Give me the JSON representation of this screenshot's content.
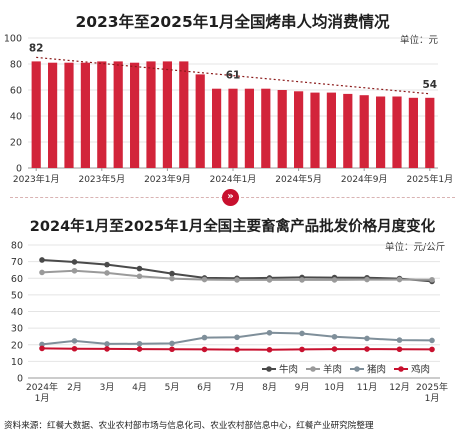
{
  "chart_data": [
    {
      "type": "bar",
      "title": "2023年至2025年1月全国烤串人均消费情况",
      "unit": "单位：元",
      "categories": [
        "2023-01",
        "2023-02",
        "2023-03",
        "2023-04",
        "2023-05",
        "2023-06",
        "2023-07",
        "2023-08",
        "2023-09",
        "2023-10",
        "2023-11",
        "2023-12",
        "2024-01",
        "2024-02",
        "2024-03",
        "2024-04",
        "2024-05",
        "2024-06",
        "2024-07",
        "2024-08",
        "2024-09",
        "2024-10",
        "2024-11",
        "2024-12",
        "2025-01"
      ],
      "tick_labels": [
        "2023年1月",
        "2023年5月",
        "2023年9月",
        "2024年1月",
        "2024年5月",
        "2024年9月",
        "2025年1月"
      ],
      "values": [
        82,
        81,
        81,
        81,
        82,
        82,
        81,
        82,
        82,
        82,
        72,
        61,
        61,
        61,
        61,
        60,
        59,
        58,
        58,
        57,
        56,
        55,
        55,
        54,
        54
      ],
      "data_labels": [
        {
          "category": "2023-01",
          "text": "82"
        },
        {
          "category": "2024-01",
          "text": "61"
        },
        {
          "category": "2025-01",
          "text": "54"
        }
      ],
      "trendline": "dotted",
      "ylim": [
        0,
        100
      ],
      "yticks": [
        0,
        20,
        40,
        60,
        80,
        100
      ],
      "colors": {
        "bar": "#d2243a",
        "trend": "#8b1a1a"
      }
    },
    {
      "type": "line",
      "title": "2024年1月至2025年1月全国主要畜禽产品批发价格月度变化",
      "unit": "单位：元/公斤",
      "categories": [
        "2024年 1月",
        "2月",
        "3月",
        "4月",
        "5月",
        "6月",
        "7月",
        "8月",
        "9月",
        "10月",
        "11月",
        "12月",
        "2025年 1月"
      ],
      "ylim": [
        0,
        80
      ],
      "yticks": [
        0,
        10,
        20,
        30,
        40,
        50,
        60,
        70,
        80
      ],
      "legend_position": "bottom-right",
      "series": [
        {
          "name": "牛肉",
          "color": "#4a4a4a",
          "values": [
            71,
            69.8,
            68.2,
            65.8,
            62.8,
            60.2,
            60,
            60.2,
            60.5,
            60.4,
            60.3,
            59.8,
            58.1
          ]
        },
        {
          "name": "羊肉",
          "color": "#9a9a9a",
          "values": [
            63.5,
            64.5,
            63.2,
            61.2,
            59.8,
            59.2,
            59,
            59,
            59,
            59,
            59.2,
            59.2,
            59.1
          ]
        },
        {
          "name": "猪肉",
          "color": "#7f8f9a",
          "values": [
            20.2,
            22.3,
            20.5,
            20.6,
            20.8,
            24.3,
            24.5,
            27.2,
            26.8,
            24.8,
            23.8,
            22.8,
            22.6
          ]
        },
        {
          "name": "鸡肉",
          "color": "#c8102e",
          "values": [
            17.8,
            17.6,
            17.5,
            17.4,
            17.3,
            17.2,
            17.1,
            17,
            17.2,
            17.4,
            17.4,
            17.3,
            17.2
          ]
        }
      ]
    }
  ],
  "source_note": "资料来源：红餐大数据、农业农村部市场与信息化司、农业农村部信息中心，红餐产业研究院整理",
  "divider_icon": "double-chevron-down-icon"
}
